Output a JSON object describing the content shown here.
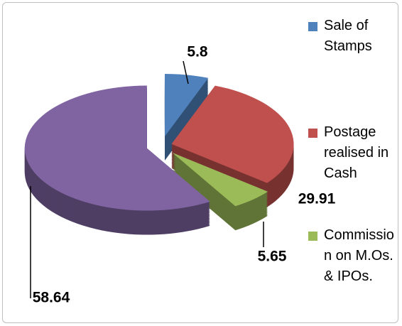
{
  "chart_data": {
    "type": "pie3d",
    "categories": [
      "Sale of Stamps",
      "Postage realised in Cash",
      "Commission on M.Os. & IPOs.",
      null
    ],
    "values": [
      5.8,
      29.91,
      5.65,
      58.64
    ],
    "colors": [
      "#4f81bd",
      "#c0504d",
      "#9bbb59",
      "#8064a2"
    ],
    "legend": "right"
  }
}
